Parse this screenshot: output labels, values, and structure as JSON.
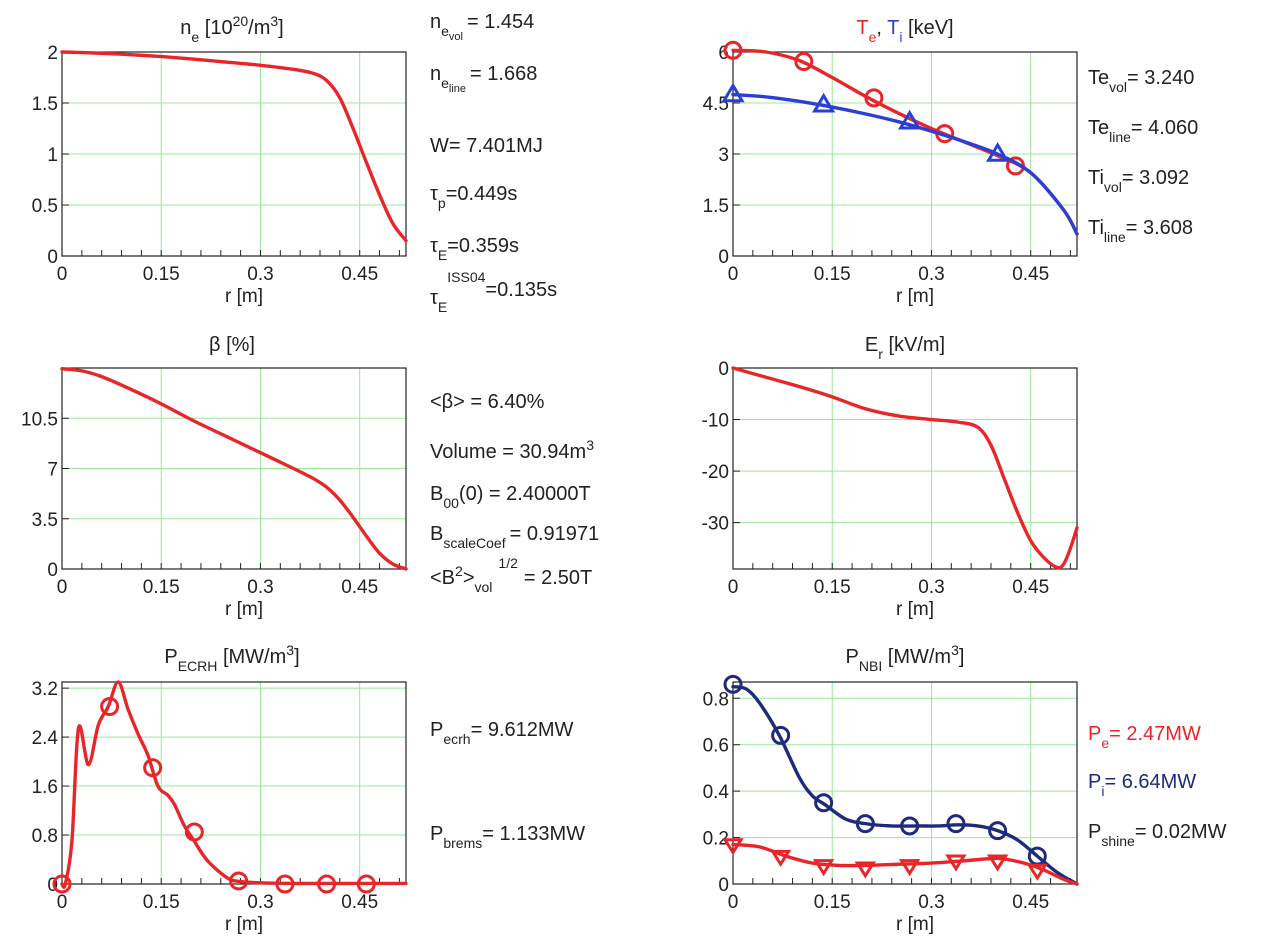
{
  "chart_data": [
    {
      "id": "ne",
      "type": "line",
      "title": "n_e [10^20/m^3]",
      "xlabel": "r [m]",
      "xlim": [
        0,
        0.52
      ],
      "ylim": [
        0,
        2
      ],
      "xticks": [
        "0",
        "0.15",
        "0.3",
        "0.45"
      ],
      "yticks": [
        "0",
        "0.5",
        "1",
        "1.5",
        "2"
      ],
      "grid": true,
      "series": [
        {
          "color": "#e8262a",
          "x": [
            0,
            0.05,
            0.1,
            0.15,
            0.2,
            0.25,
            0.3,
            0.35,
            0.38,
            0.4,
            0.42,
            0.44,
            0.46,
            0.48,
            0.5,
            0.52
          ],
          "y": [
            2.0,
            1.99,
            1.975,
            1.955,
            1.93,
            1.9,
            1.87,
            1.83,
            1.79,
            1.72,
            1.55,
            1.25,
            0.92,
            0.6,
            0.32,
            0.15
          ]
        }
      ]
    },
    {
      "id": "teti",
      "type": "line",
      "title_parts": [
        "T_e",
        ", ",
        "T_i",
        " [keV]"
      ],
      "xlabel": "r [m]",
      "xlim": [
        0,
        0.52
      ],
      "ylim": [
        0,
        6
      ],
      "xticks": [
        "0",
        "0.15",
        "0.3",
        "0.45"
      ],
      "yticks": [
        "0",
        "1.5",
        "3",
        "4.5",
        "6"
      ],
      "grid": true,
      "series": [
        {
          "name": "T_e",
          "color": "#e8262a",
          "marker": "circle",
          "x": [
            0,
            0.05,
            0.1,
            0.15,
            0.2,
            0.25,
            0.3,
            0.35,
            0.4,
            0.45,
            0.5,
            0.52
          ],
          "y": [
            6.05,
            6.0,
            5.75,
            5.25,
            4.7,
            4.2,
            3.75,
            3.35,
            2.95,
            2.45,
            1.35,
            0.65
          ],
          "markers_x": [
            0,
            0.107,
            0.213,
            0.32,
            0.427
          ],
          "markers_y": [
            6.05,
            5.72,
            4.65,
            3.6,
            2.65
          ]
        },
        {
          "name": "T_i",
          "color": "#2a3fd6",
          "marker": "triangle",
          "x": [
            0,
            0.05,
            0.1,
            0.15,
            0.2,
            0.25,
            0.3,
            0.35,
            0.4,
            0.45,
            0.5,
            0.52
          ],
          "y": [
            4.75,
            4.68,
            4.55,
            4.38,
            4.18,
            3.95,
            3.67,
            3.36,
            3.0,
            2.45,
            1.35,
            0.65
          ],
          "markers_x": [
            0,
            0.137,
            0.267,
            0.4
          ],
          "markers_y": [
            4.75,
            4.45,
            3.95,
            3.0
          ]
        }
      ]
    },
    {
      "id": "beta",
      "type": "line",
      "title": "β [%]",
      "xlabel": "r [m]",
      "xlim": [
        0,
        0.52
      ],
      "ylim": [
        0,
        14
      ],
      "xticks": [
        "0",
        "0.15",
        "0.3",
        "0.45"
      ],
      "yticks": [
        "0",
        "3.5",
        "7",
        "10.5"
      ],
      "ytick_values": [
        0,
        3.5,
        7,
        10.5
      ],
      "grid": true,
      "series": [
        {
          "color": "#e8262a",
          "x": [
            0,
            0.03,
            0.06,
            0.1,
            0.15,
            0.2,
            0.25,
            0.3,
            0.35,
            0.38,
            0.4,
            0.42,
            0.44,
            0.46,
            0.48,
            0.5,
            0.52
          ],
          "y": [
            13.95,
            13.8,
            13.4,
            12.6,
            11.5,
            10.3,
            9.2,
            8.1,
            7.0,
            6.3,
            5.7,
            4.8,
            3.6,
            2.3,
            1.1,
            0.35,
            0
          ]
        }
      ]
    },
    {
      "id": "er",
      "type": "line",
      "title": "E_r [kV/m]",
      "xlabel": "r [m]",
      "xlim": [
        0,
        0.52
      ],
      "ylim": [
        -39,
        0
      ],
      "xticks": [
        "0",
        "0.15",
        "0.3",
        "0.45"
      ],
      "yticks": [
        "0",
        "-10",
        "-20",
        "-30"
      ],
      "ytick_values": [
        0,
        -10,
        -20,
        -30
      ],
      "grid": true,
      "series": [
        {
          "color": "#e8262a",
          "x": [
            0,
            0.05,
            0.1,
            0.15,
            0.2,
            0.25,
            0.3,
            0.34,
            0.37,
            0.39,
            0.41,
            0.43,
            0.45,
            0.47,
            0.49,
            0.5,
            0.51,
            0.52
          ],
          "y": [
            0,
            -1.8,
            -3.6,
            -5.6,
            -7.9,
            -9.3,
            -10.0,
            -10.5,
            -11.5,
            -15.0,
            -21.5,
            -28.0,
            -33.5,
            -36.8,
            -38.7,
            -38.0,
            -35.0,
            -31.0
          ]
        }
      ]
    },
    {
      "id": "pecrh",
      "type": "line",
      "title": "P_ECRH [MW/m^3]",
      "xlabel": "r [m]",
      "xlim": [
        0,
        0.52
      ],
      "ylim": [
        0,
        3.3
      ],
      "xticks": [
        "0",
        "0.15",
        "0.3",
        "0.45"
      ],
      "yticks": [
        "0",
        "0.8",
        "1.6",
        "2.4",
        "3.2"
      ],
      "ytick_values": [
        0,
        0.8,
        1.6,
        2.4,
        3.2
      ],
      "grid": true,
      "series": [
        {
          "color": "#e8262a",
          "marker": "circle",
          "x": [
            0,
            0.005,
            0.015,
            0.025,
            0.04,
            0.055,
            0.07,
            0.085,
            0.1,
            0.115,
            0.13,
            0.145,
            0.16,
            0.17,
            0.185,
            0.2,
            0.22,
            0.25,
            0.27,
            0.3,
            0.35,
            0.4,
            0.45,
            0.52
          ],
          "y": [
            0,
            0,
            0.7,
            2.55,
            1.95,
            2.6,
            2.9,
            3.3,
            2.85,
            2.45,
            2.1,
            1.6,
            1.45,
            1.3,
            0.95,
            0.7,
            0.38,
            0.1,
            0.04,
            0.02,
            0.01,
            0.01,
            0.01,
            0.01
          ],
          "markers_x": [
            0,
            0.072,
            0.137,
            0.2,
            0.267,
            0.337,
            0.4,
            0.46
          ],
          "markers_y": [
            0,
            2.9,
            1.9,
            0.85,
            0.05,
            0,
            0,
            0
          ]
        }
      ]
    },
    {
      "id": "pnbi",
      "type": "line",
      "title": "P_NBI [MW/m^3]",
      "xlabel": "r [m]",
      "xlim": [
        0,
        0.52
      ],
      "ylim": [
        0,
        0.87
      ],
      "xticks": [
        "0",
        "0.15",
        "0.3",
        "0.45"
      ],
      "yticks": [
        "0",
        "0.2",
        "0.4",
        "0.6",
        "0.8"
      ],
      "ytick_values": [
        0,
        0.2,
        0.4,
        0.6,
        0.8
      ],
      "grid": true,
      "series": [
        {
          "name": "P_i",
          "color": "#1e2a7a",
          "marker": "circle",
          "x": [
            0,
            0.02,
            0.04,
            0.07,
            0.1,
            0.12,
            0.14,
            0.17,
            0.2,
            0.24,
            0.28,
            0.31,
            0.34,
            0.37,
            0.4,
            0.43,
            0.46,
            0.49,
            0.52
          ],
          "y": [
            0.85,
            0.84,
            0.78,
            0.64,
            0.46,
            0.38,
            0.34,
            0.28,
            0.26,
            0.25,
            0.25,
            0.25,
            0.255,
            0.25,
            0.23,
            0.19,
            0.12,
            0.05,
            0
          ],
          "markers_x": [
            0,
            0.072,
            0.137,
            0.2,
            0.267,
            0.337,
            0.4,
            0.46
          ],
          "markers_y": [
            0.86,
            0.64,
            0.35,
            0.26,
            0.25,
            0.26,
            0.23,
            0.12
          ]
        },
        {
          "name": "P_e",
          "color": "#e8262a",
          "marker": "triangle-down",
          "x": [
            0,
            0.04,
            0.08,
            0.12,
            0.16,
            0.2,
            0.25,
            0.3,
            0.35,
            0.4,
            0.44,
            0.47,
            0.5,
            0.52
          ],
          "y": [
            0.17,
            0.16,
            0.12,
            0.09,
            0.08,
            0.08,
            0.085,
            0.09,
            0.1,
            0.11,
            0.09,
            0.06,
            0.02,
            0
          ],
          "markers_x": [
            0,
            0.072,
            0.137,
            0.2,
            0.267,
            0.337,
            0.4,
            0.46
          ],
          "markers_y": [
            0.17,
            0.12,
            0.08,
            0.07,
            0.08,
            0.1,
            0.1,
            0.06
          ]
        }
      ]
    }
  ],
  "info": {
    "ne_vol_val": "= 1.454",
    "ne_line_val": "= 1.668",
    "w": "W= 7.401MJ",
    "tau_p_val": "=0.449s",
    "tau_e_val": "=0.359s",
    "tau_iss_sup": "ISS04",
    "tau_iss_val": "=0.135s",
    "te_vol_val": "= 3.240",
    "te_line_val": "= 4.060",
    "ti_vol_val": "= 3.092",
    "ti_line_val": "= 3.608",
    "beta_avg": "<β> = 6.40%",
    "volume_label": "Volume = 30.94m",
    "volume_sup": "3",
    "b00": "= 2.40000T",
    "bscale_val": "= 0.91971",
    "b2_val": "= 2.50T",
    "pecrh_val": "= 9.612MW",
    "pbrems_val": "= 1.133MW",
    "pe_val": "= 2.47MW",
    "pi_val": "= 6.64MW",
    "pshine_val": "= 0.02MW"
  }
}
